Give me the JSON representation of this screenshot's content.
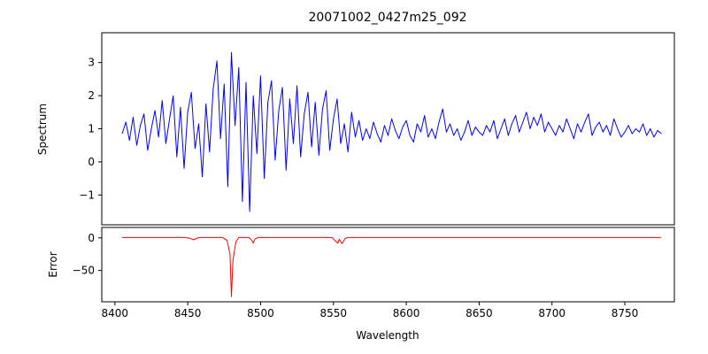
{
  "title": "20071002_0427m25_092",
  "xlabel": "Wavelength",
  "xticks": [
    8400,
    8450,
    8500,
    8550,
    8600,
    8650,
    8700,
    8750
  ],
  "chart_data": [
    {
      "type": "line",
      "name": "spectrum",
      "ylabel": "Spectrum",
      "color": "#0000ff",
      "xlim": [
        8391,
        8784
      ],
      "ylim": [
        -1.9,
        3.9
      ],
      "yticks": [
        -1,
        0,
        1,
        2,
        3
      ],
      "grid": false,
      "x_start": 8405,
      "x_step": 2.5,
      "values": [
        0.85,
        1.2,
        0.65,
        1.35,
        0.5,
        1.1,
        1.45,
        0.35,
        1.0,
        1.55,
        0.75,
        1.85,
        0.55,
        1.3,
        2.0,
        0.15,
        1.65,
        -0.2,
        1.5,
        2.1,
        0.4,
        1.15,
        -0.45,
        1.75,
        0.3,
        2.2,
        3.05,
        0.7,
        2.35,
        -0.75,
        3.3,
        1.1,
        2.85,
        -1.2,
        2.4,
        -1.5,
        2.0,
        0.25,
        2.6,
        -0.5,
        1.8,
        2.45,
        0.05,
        1.55,
        2.25,
        -0.25,
        1.9,
        0.55,
        2.3,
        0.15,
        1.45,
        2.1,
        0.45,
        1.8,
        0.2,
        1.6,
        2.15,
        0.35,
        1.3,
        1.9,
        0.55,
        1.15,
        0.3,
        1.5,
        0.75,
        1.25,
        0.65,
        1.0,
        0.7,
        1.2,
        0.85,
        0.6,
        1.1,
        0.8,
        1.3,
        0.95,
        0.7,
        1.05,
        1.25,
        0.8,
        0.6,
        1.15,
        0.9,
        1.4,
        0.75,
        1.0,
        0.7,
        1.2,
        1.6,
        0.9,
        1.15,
        0.8,
        1.0,
        0.65,
        0.9,
        1.25,
        0.8,
        1.05,
        0.9,
        0.8,
        1.1,
        0.9,
        1.25,
        0.7,
        1.0,
        1.3,
        0.8,
        1.15,
        1.4,
        0.9,
        1.2,
        1.5,
        1.0,
        1.35,
        1.1,
        1.45,
        0.9,
        1.2,
        1.0,
        0.8,
        1.1,
        0.9,
        1.3,
        1.0,
        0.7,
        1.15,
        0.9,
        1.2,
        1.45,
        0.8,
        1.05,
        1.2,
        0.9,
        1.1,
        0.8,
        1.3,
        1.0,
        0.75,
        0.9,
        1.1,
        0.85,
        1.0,
        0.9,
        1.15,
        0.8,
        1.0,
        0.75,
        0.95,
        0.85
      ]
    },
    {
      "type": "line",
      "name": "error",
      "ylabel": "Error",
      "color": "#ff0000",
      "xlim": [
        8391,
        8784
      ],
      "ylim": [
        -98,
        16
      ],
      "yticks": [
        -50,
        0
      ],
      "grid": false,
      "points": [
        [
          8405,
          0.5
        ],
        [
          8448,
          0.5
        ],
        [
          8452,
          -0.8
        ],
        [
          8454,
          -3
        ],
        [
          8456,
          -1
        ],
        [
          8458,
          0.5
        ],
        [
          8474,
          0.5
        ],
        [
          8477,
          -4
        ],
        [
          8479,
          -25
        ],
        [
          8480,
          -90
        ],
        [
          8481,
          -35
        ],
        [
          8483,
          -6
        ],
        [
          8485,
          0.5
        ],
        [
          8492,
          0.5
        ],
        [
          8494,
          -4
        ],
        [
          8495,
          -8
        ],
        [
          8496,
          -2
        ],
        [
          8498,
          0.5
        ],
        [
          8549,
          0.5
        ],
        [
          8551,
          -4
        ],
        [
          8553,
          -8
        ],
        [
          8554,
          -2
        ],
        [
          8556,
          -9
        ],
        [
          8558,
          -1
        ],
        [
          8560,
          0.5
        ],
        [
          8775,
          0.5
        ]
      ]
    }
  ]
}
